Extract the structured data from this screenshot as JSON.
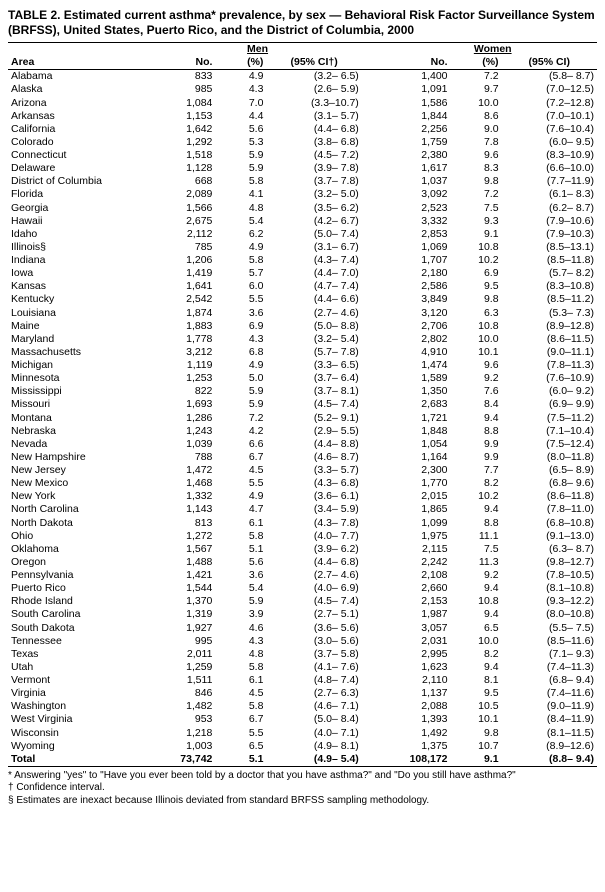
{
  "title": "TABLE 2. Estimated current asthma* prevalence, by sex — Behavioral Risk Factor Surveillance System (BRFSS), United States, Puerto Rico, and the District of Columbia, 2000",
  "group_headers": {
    "men": "Men",
    "women": "Women"
  },
  "col_headers": {
    "area": "Area",
    "no": "No.",
    "pct": "(%)",
    "ci_men": "(95% CI†)",
    "ci_women": "(95% CI)"
  },
  "rows": [
    {
      "area": "Alabama",
      "mn": "833",
      "mp": "4.9",
      "mc": "(3.2– 6.5)",
      "wn": "1,400",
      "wp": "7.2",
      "wc": "(5.8– 8.7)"
    },
    {
      "area": "Alaska",
      "mn": "985",
      "mp": "4.3",
      "mc": "(2.6– 5.9)",
      "wn": "1,091",
      "wp": "9.7",
      "wc": "(7.0–12.5)"
    },
    {
      "area": "Arizona",
      "mn": "1,084",
      "mp": "7.0",
      "mc": "(3.3–10.7)",
      "wn": "1,586",
      "wp": "10.0",
      "wc": "(7.2–12.8)"
    },
    {
      "area": "Arkansas",
      "mn": "1,153",
      "mp": "4.4",
      "mc": "(3.1– 5.7)",
      "wn": "1,844",
      "wp": "8.6",
      "wc": "(7.0–10.1)"
    },
    {
      "area": "California",
      "mn": "1,642",
      "mp": "5.6",
      "mc": "(4.4– 6.8)",
      "wn": "2,256",
      "wp": "9.0",
      "wc": "(7.6–10.4)"
    },
    {
      "area": "Colorado",
      "mn": "1,292",
      "mp": "5.3",
      "mc": "(3.8– 6.8)",
      "wn": "1,759",
      "wp": "7.8",
      "wc": "(6.0– 9.5)"
    },
    {
      "area": "Connecticut",
      "mn": "1,518",
      "mp": "5.9",
      "mc": "(4.5– 7.2)",
      "wn": "2,380",
      "wp": "9.6",
      "wc": "(8.3–10.9)"
    },
    {
      "area": "Delaware",
      "mn": "1,128",
      "mp": "5.9",
      "mc": "(3.9– 7.8)",
      "wn": "1,617",
      "wp": "8.3",
      "wc": "(6.6–10.0)"
    },
    {
      "area": "District of Columbia",
      "mn": "668",
      "mp": "5.8",
      "mc": "(3.7– 7.8)",
      "wn": "1,037",
      "wp": "9.8",
      "wc": "(7.7–11.9)"
    },
    {
      "area": "Florida",
      "mn": "2,089",
      "mp": "4.1",
      "mc": "(3.2– 5.0)",
      "wn": "3,092",
      "wp": "7.2",
      "wc": "(6.1– 8.3)"
    },
    {
      "area": "Georgia",
      "mn": "1,566",
      "mp": "4.8",
      "mc": "(3.5– 6.2)",
      "wn": "2,523",
      "wp": "7.5",
      "wc": "(6.2– 8.7)"
    },
    {
      "area": "Hawaii",
      "mn": "2,675",
      "mp": "5.4",
      "mc": "(4.2– 6.7)",
      "wn": "3,332",
      "wp": "9.3",
      "wc": "(7.9–10.6)"
    },
    {
      "area": "Idaho",
      "mn": "2,112",
      "mp": "6.2",
      "mc": "(5.0– 7.4)",
      "wn": "2,853",
      "wp": "9.1",
      "wc": "(7.9–10.3)"
    },
    {
      "area": "Illinois§",
      "mn": "785",
      "mp": "4.9",
      "mc": "(3.1– 6.7)",
      "wn": "1,069",
      "wp": "10.8",
      "wc": "(8.5–13.1)"
    },
    {
      "area": "Indiana",
      "mn": "1,206",
      "mp": "5.8",
      "mc": "(4.3– 7.4)",
      "wn": "1,707",
      "wp": "10.2",
      "wc": "(8.5–11.8)"
    },
    {
      "area": "Iowa",
      "mn": "1,419",
      "mp": "5.7",
      "mc": "(4.4– 7.0)",
      "wn": "2,180",
      "wp": "6.9",
      "wc": "(5.7– 8.2)"
    },
    {
      "area": "Kansas",
      "mn": "1,641",
      "mp": "6.0",
      "mc": "(4.7– 7.4)",
      "wn": "2,586",
      "wp": "9.5",
      "wc": "(8.3–10.8)"
    },
    {
      "area": "Kentucky",
      "mn": "2,542",
      "mp": "5.5",
      "mc": "(4.4– 6.6)",
      "wn": "3,849",
      "wp": "9.8",
      "wc": "(8.5–11.2)"
    },
    {
      "area": "Louisiana",
      "mn": "1,874",
      "mp": "3.6",
      "mc": "(2.7– 4.6)",
      "wn": "3,120",
      "wp": "6.3",
      "wc": "(5.3– 7.3)"
    },
    {
      "area": "Maine",
      "mn": "1,883",
      "mp": "6.9",
      "mc": "(5.0– 8.8)",
      "wn": "2,706",
      "wp": "10.8",
      "wc": "(8.9–12.8)"
    },
    {
      "area": "Maryland",
      "mn": "1,778",
      "mp": "4.3",
      "mc": "(3.2– 5.4)",
      "wn": "2,802",
      "wp": "10.0",
      "wc": "(8.6–11.5)"
    },
    {
      "area": "Massachusetts",
      "mn": "3,212",
      "mp": "6.8",
      "mc": "(5.7– 7.8)",
      "wn": "4,910",
      "wp": "10.1",
      "wc": "(9.0–11.1)"
    },
    {
      "area": "Michigan",
      "mn": "1,119",
      "mp": "4.9",
      "mc": "(3.3– 6.5)",
      "wn": "1,474",
      "wp": "9.6",
      "wc": "(7.8–11.3)"
    },
    {
      "area": "Minnesota",
      "mn": "1,253",
      "mp": "5.0",
      "mc": "(3.7– 6.4)",
      "wn": "1,589",
      "wp": "9.2",
      "wc": "(7.6–10.9)"
    },
    {
      "area": "Mississippi",
      "mn": "822",
      "mp": "5.9",
      "mc": "(3.7– 8.1)",
      "wn": "1,350",
      "wp": "7.6",
      "wc": "(6.0– 9.2)"
    },
    {
      "area": "Missouri",
      "mn": "1,693",
      "mp": "5.9",
      "mc": "(4.5– 7.4)",
      "wn": "2,683",
      "wp": "8.4",
      "wc": "(6.9– 9.9)"
    },
    {
      "area": "Montana",
      "mn": "1,286",
      "mp": "7.2",
      "mc": "(5.2– 9.1)",
      "wn": "1,721",
      "wp": "9.4",
      "wc": "(7.5–11.2)"
    },
    {
      "area": "Nebraska",
      "mn": "1,243",
      "mp": "4.2",
      "mc": "(2.9– 5.5)",
      "wn": "1,848",
      "wp": "8.8",
      "wc": "(7.1–10.4)"
    },
    {
      "area": "Nevada",
      "mn": "1,039",
      "mp": "6.6",
      "mc": "(4.4– 8.8)",
      "wn": "1,054",
      "wp": "9.9",
      "wc": "(7.5–12.4)"
    },
    {
      "area": "New Hampshire",
      "mn": "788",
      "mp": "6.7",
      "mc": "(4.6– 8.7)",
      "wn": "1,164",
      "wp": "9.9",
      "wc": "(8.0–11.8)"
    },
    {
      "area": "New Jersey",
      "mn": "1,472",
      "mp": "4.5",
      "mc": "(3.3– 5.7)",
      "wn": "2,300",
      "wp": "7.7",
      "wc": "(6.5– 8.9)"
    },
    {
      "area": "New Mexico",
      "mn": "1,468",
      "mp": "5.5",
      "mc": "(4.3– 6.8)",
      "wn": "1,770",
      "wp": "8.2",
      "wc": "(6.8– 9.6)"
    },
    {
      "area": "New York",
      "mn": "1,332",
      "mp": "4.9",
      "mc": "(3.6– 6.1)",
      "wn": "2,015",
      "wp": "10.2",
      "wc": "(8.6–11.8)"
    },
    {
      "area": "North Carolina",
      "mn": "1,143",
      "mp": "4.7",
      "mc": "(3.4– 5.9)",
      "wn": "1,865",
      "wp": "9.4",
      "wc": "(7.8–11.0)"
    },
    {
      "area": "North Dakota",
      "mn": "813",
      "mp": "6.1",
      "mc": "(4.3– 7.8)",
      "wn": "1,099",
      "wp": "8.8",
      "wc": "(6.8–10.8)"
    },
    {
      "area": "Ohio",
      "mn": "1,272",
      "mp": "5.8",
      "mc": "(4.0– 7.7)",
      "wn": "1,975",
      "wp": "11.1",
      "wc": "(9.1–13.0)"
    },
    {
      "area": "Oklahoma",
      "mn": "1,567",
      "mp": "5.1",
      "mc": "(3.9– 6.2)",
      "wn": "2,115",
      "wp": "7.5",
      "wc": "(6.3– 8.7)"
    },
    {
      "area": "Oregon",
      "mn": "1,488",
      "mp": "5.6",
      "mc": "(4.4– 6.8)",
      "wn": "2,242",
      "wp": "11.3",
      "wc": "(9.8–12.7)"
    },
    {
      "area": "Pennsylvania",
      "mn": "1,421",
      "mp": "3.6",
      "mc": "(2.7– 4.6)",
      "wn": "2,108",
      "wp": "9.2",
      "wc": "(7.8–10.5)"
    },
    {
      "area": "Puerto Rico",
      "mn": "1,544",
      "mp": "5.4",
      "mc": "(4.0– 6.9)",
      "wn": "2,660",
      "wp": "9.4",
      "wc": "(8.1–10.8)"
    },
    {
      "area": "Rhode Island",
      "mn": "1,370",
      "mp": "5.9",
      "mc": "(4.5– 7.4)",
      "wn": "2,153",
      "wp": "10.8",
      "wc": "(9.3–12.2)"
    },
    {
      "area": "South Carolina",
      "mn": "1,319",
      "mp": "3.9",
      "mc": "(2.7– 5.1)",
      "wn": "1,987",
      "wp": "9.4",
      "wc": "(8.0–10.8)"
    },
    {
      "area": "South Dakota",
      "mn": "1,927",
      "mp": "4.6",
      "mc": "(3.6– 5.6)",
      "wn": "3,057",
      "wp": "6.5",
      "wc": "(5.5– 7.5)"
    },
    {
      "area": "Tennessee",
      "mn": "995",
      "mp": "4.3",
      "mc": "(3.0– 5.6)",
      "wn": "2,031",
      "wp": "10.0",
      "wc": "(8.5–11.6)"
    },
    {
      "area": "Texas",
      "mn": "2,011",
      "mp": "4.8",
      "mc": "(3.7– 5.8)",
      "wn": "2,995",
      "wp": "8.2",
      "wc": "(7.1– 9.3)"
    },
    {
      "area": "Utah",
      "mn": "1,259",
      "mp": "5.8",
      "mc": "(4.1– 7.6)",
      "wn": "1,623",
      "wp": "9.4",
      "wc": "(7.4–11.3)"
    },
    {
      "area": "Vermont",
      "mn": "1,511",
      "mp": "6.1",
      "mc": "(4.8– 7.4)",
      "wn": "2,110",
      "wp": "8.1",
      "wc": "(6.8– 9.4)"
    },
    {
      "area": "Virginia",
      "mn": "846",
      "mp": "4.5",
      "mc": "(2.7– 6.3)",
      "wn": "1,137",
      "wp": "9.5",
      "wc": "(7.4–11.6)"
    },
    {
      "area": "Washington",
      "mn": "1,482",
      "mp": "5.8",
      "mc": "(4.6– 7.1)",
      "wn": "2,088",
      "wp": "10.5",
      "wc": "(9.0–11.9)"
    },
    {
      "area": "West Virginia",
      "mn": "953",
      "mp": "6.7",
      "mc": "(5.0– 8.4)",
      "wn": "1,393",
      "wp": "10.1",
      "wc": "(8.4–11.9)"
    },
    {
      "area": "Wisconsin",
      "mn": "1,218",
      "mp": "5.5",
      "mc": "(4.0– 7.1)",
      "wn": "1,492",
      "wp": "9.8",
      "wc": "(8.1–11.5)"
    },
    {
      "area": "Wyoming",
      "mn": "1,003",
      "mp": "6.5",
      "mc": "(4.9– 8.1)",
      "wn": "1,375",
      "wp": "10.7",
      "wc": "(8.9–12.6)"
    }
  ],
  "total": {
    "area": "Total",
    "mn": "73,742",
    "mp": "5.1",
    "mc": "(4.9– 5.4)",
    "wn": "108,172",
    "wp": "9.1",
    "wc": "(8.8– 9.4)"
  },
  "footnotes": {
    "star": "* Answering \"yes\" to \"Have you ever been told by a doctor that you have asthma?\" and \"Do you still have asthma?\"",
    "dagger": "† Confidence interval.",
    "section": "§ Estimates are inexact because Illinois deviated from standard BRFSS sampling methodology."
  }
}
